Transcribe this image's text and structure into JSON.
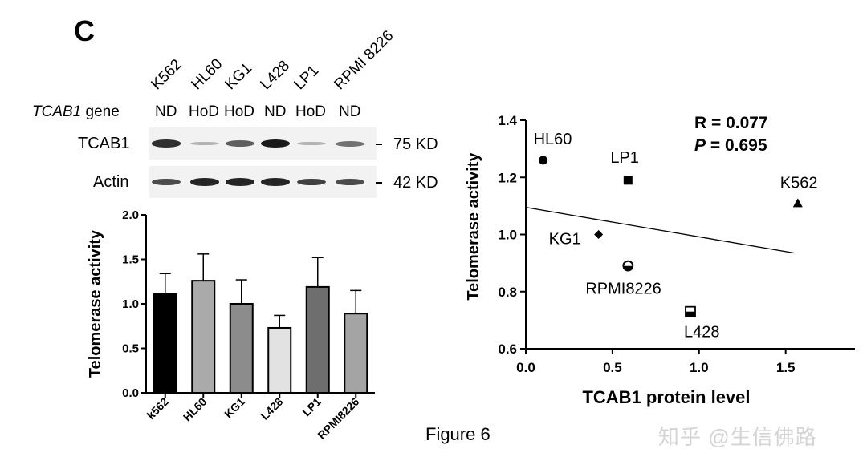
{
  "panel_letter": "C",
  "figure_caption": "Figure 6",
  "watermark": "知乎 @生信佛路",
  "western_blot": {
    "lanes": [
      {
        "name": "K562",
        "genotype": "ND"
      },
      {
        "name": "HL60",
        "genotype": "HoD"
      },
      {
        "name": "KG1",
        "genotype": "HoD"
      },
      {
        "name": "L428",
        "genotype": "ND"
      },
      {
        "name": "LP1",
        "genotype": "HoD"
      },
      {
        "name": "RPMI 8226",
        "genotype": "ND"
      }
    ],
    "gene_label_italic": "TCAB1",
    "gene_label_rest": " gene",
    "rows": [
      {
        "name": "TCAB1",
        "size": "75 KD",
        "band_intensity": [
          0.85,
          0.15,
          0.6,
          0.95,
          0.15,
          0.5
        ]
      },
      {
        "name": "Actin",
        "size": "42 KD",
        "band_intensity": [
          0.7,
          0.9,
          0.9,
          0.9,
          0.75,
          0.7
        ]
      }
    ]
  },
  "chart_data": [
    {
      "type": "bar",
      "ylabel": "Telomerase activity",
      "xlabel": "",
      "ylim": [
        0,
        2.0
      ],
      "yticks": [
        "0.0",
        "0.5",
        "1.0",
        "1.5",
        "2.0"
      ],
      "categories": [
        "k562",
        "HL60",
        "KG1",
        "L428",
        "LP1",
        "RPMI8226"
      ],
      "values": [
        1.11,
        1.26,
        1.0,
        0.73,
        1.19,
        0.89
      ],
      "errors": [
        0.23,
        0.3,
        0.27,
        0.14,
        0.33,
        0.26
      ],
      "colors": [
        "#000000",
        "#aaaaaa",
        "#8c8c8c",
        "#e2e2e2",
        "#6e6e6e",
        "#a4a4a4"
      ]
    },
    {
      "type": "scatter",
      "xlabel": "TCAB1 protein level",
      "ylabel": "Telomerase activity",
      "xlim": [
        0,
        1.9
      ],
      "ylim": [
        0.6,
        1.4
      ],
      "xticks": [
        "0.0",
        "0.5",
        "1.0",
        "1.5"
      ],
      "yticks": [
        "0.6",
        "0.8",
        "1.0",
        "1.2",
        "1.4"
      ],
      "points": [
        {
          "label": "HL60",
          "x": 0.1,
          "y": 1.26,
          "marker": "circle"
        },
        {
          "label": "LP1",
          "x": 0.59,
          "y": 1.19,
          "marker": "square"
        },
        {
          "label": "K562",
          "x": 1.57,
          "y": 1.11,
          "marker": "triangle"
        },
        {
          "label": "KG1",
          "x": 0.42,
          "y": 1.0,
          "marker": "diamond"
        },
        {
          "label": "RPMI8226",
          "x": 0.59,
          "y": 0.89,
          "marker": "half-circle"
        },
        {
          "label": "L428",
          "x": 0.95,
          "y": 0.73,
          "marker": "half-square"
        }
      ],
      "trendline": {
        "x": [
          0.0,
          1.55
        ],
        "y": [
          1.095,
          0.935
        ]
      },
      "annotation_r": "R = 0.077",
      "annotation_p_label": "P",
      "annotation_p_value": " = 0.695"
    }
  ]
}
